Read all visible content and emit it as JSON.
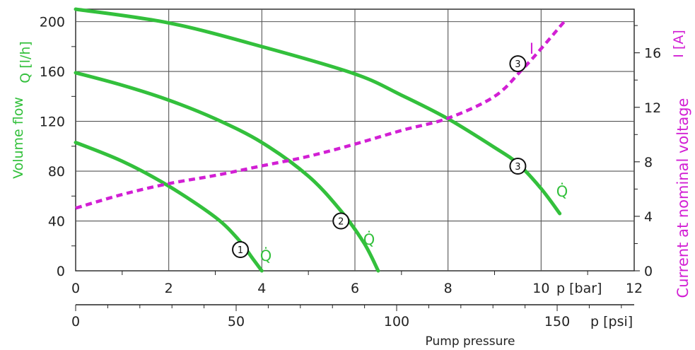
{
  "chart_data": {
    "type": "line",
    "xlabel": "Pump pressure",
    "x_bar": {
      "label": "p [bar]",
      "range": [
        0,
        12
      ],
      "ticks": [
        "0",
        "2",
        "4",
        "6",
        "8",
        "10",
        "12"
      ]
    },
    "x_psi": {
      "label": "p [psi]",
      "range": [
        0,
        174
      ],
      "ticks": [
        "0",
        "50",
        "100",
        "150"
      ]
    },
    "y_left": {
      "title": "Volume flow",
      "unit": "Q [l/h]",
      "range": [
        0,
        210
      ],
      "ticks": [
        "0",
        "40",
        "80",
        "120",
        "160",
        "200"
      ]
    },
    "y_right": {
      "title": "Current at nominal voltage",
      "unit": "I [A]",
      "range": [
        0,
        19.2
      ],
      "ticks": [
        "0",
        "4",
        "8",
        "12",
        "16"
      ]
    },
    "grid": true,
    "series": [
      {
        "name": "Q̇",
        "marker": "1",
        "color": "#33c03c",
        "axis": "left",
        "x": [
          0,
          1,
          2,
          3,
          3.5,
          3.8,
          4.0
        ],
        "y": [
          103,
          88,
          68,
          43,
          25,
          10,
          0
        ]
      },
      {
        "name": "Q̇",
        "marker": "2",
        "color": "#33c03c",
        "axis": "left",
        "x": [
          0,
          1,
          2,
          3,
          4,
          5,
          5.7,
          6.2,
          6.5
        ],
        "y": [
          159,
          149,
          137,
          122,
          103,
          76,
          48,
          22,
          0
        ]
      },
      {
        "name": "Q̇",
        "marker": "3",
        "color": "#33c03c",
        "axis": "left",
        "x": [
          0,
          2,
          4,
          6,
          7,
          8,
          9,
          9.5,
          10,
          10.4
        ],
        "y": [
          210,
          199,
          180,
          158,
          141,
          122,
          99,
          86,
          66,
          46
        ]
      },
      {
        "name": "I",
        "marker": "3",
        "color": "#d21fd4",
        "axis": "right",
        "x": [
          0,
          1,
          2,
          3,
          4,
          5,
          6,
          7,
          8,
          9,
          9.6,
          10,
          10.3,
          10.5
        ],
        "y": [
          4.6,
          5.6,
          6.4,
          7.0,
          7.7,
          8.4,
          9.3,
          10.3,
          11.2,
          12.8,
          14.8,
          16.3,
          17.5,
          18.3
        ]
      }
    ]
  }
}
